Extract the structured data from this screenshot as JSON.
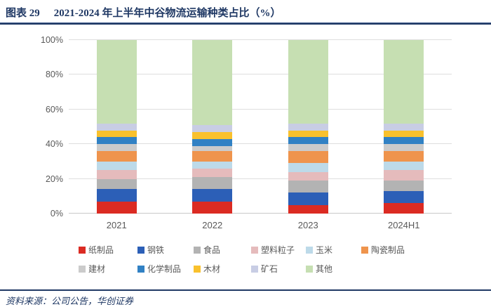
{
  "header": {
    "figure_label": "图表 29",
    "title": "2021-2024 年上半年中谷物流运输种类占比（%）"
  },
  "footer": {
    "source": "资料来源：公司公告，华创证券"
  },
  "colors": {
    "title_navy": "#1F3864",
    "axis_text": "#595959",
    "gridline": "#DEDEDE"
  },
  "chart_data": {
    "type": "bar",
    "subtype": "stacked-100-percent",
    "title": "2021-2024 年上半年中谷物流运输种类占比（%）",
    "categories": [
      "2021",
      "2022",
      "2023",
      "2024H1"
    ],
    "series": [
      {
        "name": "纸制品",
        "color": "#DB2B23",
        "values": [
          7,
          7,
          5,
          6
        ]
      },
      {
        "name": "钢铁",
        "color": "#2C5FB7",
        "values": [
          7,
          7,
          7,
          7
        ]
      },
      {
        "name": "食品",
        "color": "#B3B3B3",
        "values": [
          6,
          7,
          7,
          6
        ]
      },
      {
        "name": "塑料粒子",
        "color": "#E5BBBC",
        "values": [
          5,
          5,
          5,
          6
        ]
      },
      {
        "name": "玉米",
        "color": "#BDDAE9",
        "values": [
          5,
          4,
          5,
          5
        ]
      },
      {
        "name": "陶瓷制品",
        "color": "#EF944D",
        "values": [
          6,
          6,
          7,
          6
        ]
      },
      {
        "name": "建材",
        "color": "#CBCBCB",
        "values": [
          4,
          3,
          4,
          4
        ]
      },
      {
        "name": "化学制品",
        "color": "#3181C4",
        "values": [
          4,
          4,
          4,
          4
        ]
      },
      {
        "name": "木材",
        "color": "#F9C12D",
        "values": [
          4,
          4,
          4,
          4
        ]
      },
      {
        "name": "矿石",
        "color": "#C8CDE4",
        "values": [
          4,
          4,
          4,
          4
        ]
      },
      {
        "name": "其他",
        "color": "#C6DFB2",
        "values": [
          48,
          49,
          48,
          48
        ]
      }
    ],
    "yticks": [
      {
        "v": 0,
        "label": "0%"
      },
      {
        "v": 20,
        "label": "20%"
      },
      {
        "v": 40,
        "label": "40%"
      },
      {
        "v": 60,
        "label": "60%"
      },
      {
        "v": 80,
        "label": "80%"
      },
      {
        "v": 100,
        "label": "100%"
      }
    ],
    "ylim": [
      0,
      100
    ],
    "grid": true,
    "legend_position": "bottom",
    "legend_rows": [
      6,
      5
    ],
    "xlabel": "",
    "ylabel": ""
  }
}
